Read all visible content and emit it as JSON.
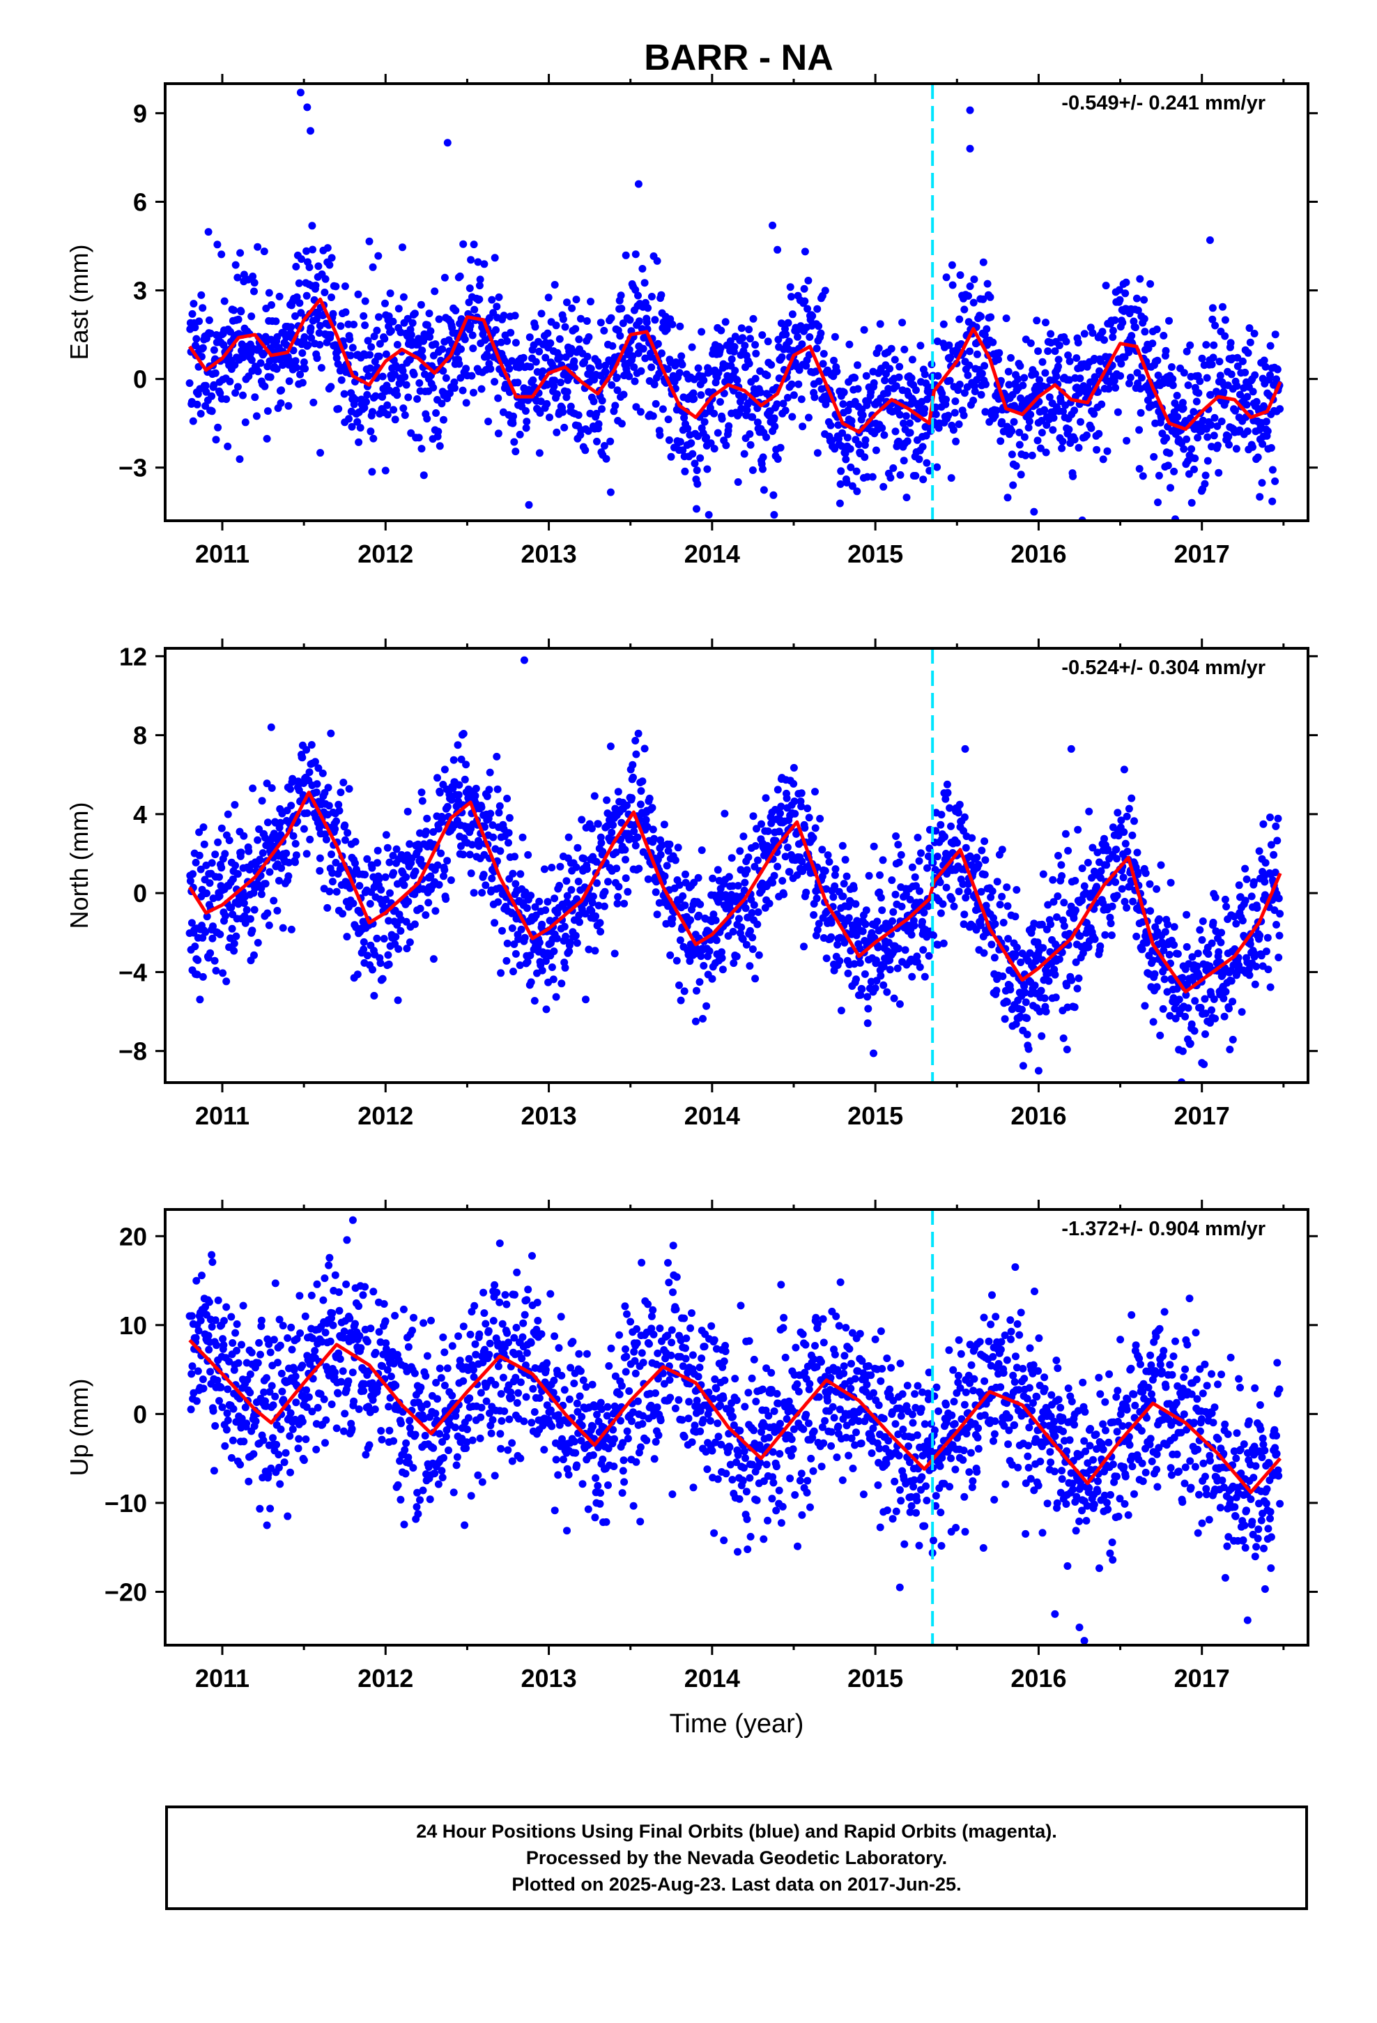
{
  "title": "BARR - NA",
  "colors": {
    "final_orbits": "#0000ff",
    "model": "#ff0000",
    "event_line": "#00e5ff",
    "frame": "#000000",
    "background": "#ffffff"
  },
  "chart_data": [
    {
      "type": "scatter",
      "component": "east",
      "ylabel": "East (mm)",
      "xlabel": "",
      "xlim": [
        2010.65,
        2017.65
      ],
      "ylim": [
        -4.8,
        10.0
      ],
      "xticks": [
        2011,
        2012,
        2013,
        2014,
        2015,
        2016,
        2017
      ],
      "xtick_labels": [
        "2011",
        "2012",
        "2013",
        "2014",
        "2015",
        "2016",
        "2017"
      ],
      "yticks": [
        -3,
        0,
        3,
        6,
        9
      ],
      "ytick_labels": [
        "−3",
        "0",
        "3",
        "6",
        "9"
      ],
      "rate_label": "-0.549+/- 0.241 mm/yr",
      "event_line_x": 2015.35,
      "model_x": [
        2010.8,
        2010.9,
        2011.0,
        2011.1,
        2011.2,
        2011.3,
        2011.4,
        2011.5,
        2011.6,
        2011.7,
        2011.8,
        2011.9,
        2012.0,
        2012.1,
        2012.2,
        2012.3,
        2012.4,
        2012.5,
        2012.6,
        2012.7,
        2012.8,
        2012.9,
        2013.0,
        2013.1,
        2013.2,
        2013.3,
        2013.4,
        2013.5,
        2013.6,
        2013.7,
        2013.8,
        2013.9,
        2014.0,
        2014.1,
        2014.2,
        2014.3,
        2014.4,
        2014.5,
        2014.6,
        2014.7,
        2014.8,
        2014.9,
        2015.0,
        2015.1,
        2015.2,
        2015.33,
        2015.36,
        2015.5,
        2015.6,
        2015.7,
        2015.8,
        2015.9,
        2016.0,
        2016.1,
        2016.2,
        2016.3,
        2016.4,
        2016.5,
        2016.6,
        2016.7,
        2016.8,
        2016.9,
        2017.0,
        2017.1,
        2017.2,
        2017.3,
        2017.4,
        2017.48
      ],
      "model_y": [
        1.1,
        0.3,
        0.7,
        1.4,
        1.5,
        0.8,
        0.9,
        2.0,
        2.7,
        1.5,
        0.1,
        -0.2,
        0.6,
        1.0,
        0.7,
        0.2,
        0.8,
        2.1,
        2.0,
        0.6,
        -0.6,
        -0.6,
        0.2,
        0.4,
        -0.1,
        -0.5,
        0.3,
        1.5,
        1.6,
        0.3,
        -0.9,
        -1.3,
        -0.6,
        -0.2,
        -0.4,
        -0.9,
        -0.5,
        0.8,
        1.1,
        -0.2,
        -1.5,
        -1.8,
        -1.2,
        -0.7,
        -1.0,
        -1.5,
        -0.4,
        0.6,
        1.7,
        0.7,
        -1.0,
        -1.2,
        -0.6,
        -0.2,
        -0.7,
        -0.8,
        0.2,
        1.2,
        1.1,
        -0.3,
        -1.5,
        -1.7,
        -1.1,
        -0.6,
        -0.7,
        -1.3,
        -1.1,
        -0.1
      ],
      "noise_amp": 1.3,
      "outliers": [
        [
          2011.48,
          9.7
        ],
        [
          2011.52,
          9.2
        ],
        [
          2011.54,
          8.4
        ],
        [
          2012.38,
          8.0
        ],
        [
          2013.55,
          6.6
        ],
        [
          2014.37,
          5.2
        ],
        [
          2015.58,
          9.1
        ],
        [
          2015.58,
          7.8
        ],
        [
          2017.05,
          4.7
        ],
        [
          2013.98,
          -4.6
        ],
        [
          2014.38,
          -4.6
        ],
        [
          2011.6,
          -2.5
        ],
        [
          2012.0,
          -3.1
        ]
      ],
      "seed": 11
    },
    {
      "type": "scatter",
      "component": "north",
      "ylabel": "North (mm)",
      "xlabel": "",
      "xlim": [
        2010.65,
        2017.65
      ],
      "ylim": [
        -9.6,
        12.4
      ],
      "xticks": [
        2011,
        2012,
        2013,
        2014,
        2015,
        2016,
        2017
      ],
      "xtick_labels": [
        "2011",
        "2012",
        "2013",
        "2014",
        "2015",
        "2016",
        "2017"
      ],
      "yticks": [
        -8,
        -4,
        0,
        4,
        8,
        12
      ],
      "ytick_labels": [
        "−8",
        "−4",
        "0",
        "4",
        "8",
        "12"
      ],
      "rate_label": "-0.524+/- 0.304 mm/yr",
      "event_line_x": 2015.35,
      "model_x": [
        2010.8,
        2010.9,
        2011.0,
        2011.2,
        2011.4,
        2011.53,
        2011.7,
        2011.9,
        2012.0,
        2012.2,
        2012.4,
        2012.52,
        2012.7,
        2012.9,
        2013.0,
        2013.2,
        2013.4,
        2013.52,
        2013.7,
        2013.9,
        2014.0,
        2014.2,
        2014.4,
        2014.52,
        2014.7,
        2014.9,
        2015.0,
        2015.2,
        2015.33,
        2015.36,
        2015.52,
        2015.7,
        2015.9,
        2016.0,
        2016.2,
        2016.4,
        2016.55,
        2016.7,
        2016.9,
        2017.0,
        2017.2,
        2017.35,
        2017.48
      ],
      "model_y": [
        0.3,
        -1.0,
        -0.6,
        0.8,
        3.0,
        5.1,
        2.4,
        -1.5,
        -1.0,
        0.5,
        3.8,
        4.6,
        0.8,
        -2.3,
        -1.8,
        -0.4,
        2.6,
        4.1,
        0.3,
        -2.6,
        -2.1,
        -0.3,
        2.4,
        3.6,
        -0.5,
        -3.2,
        -2.5,
        -1.3,
        -0.3,
        0.6,
        2.2,
        -1.8,
        -4.4,
        -3.8,
        -2.3,
        0.4,
        1.8,
        -2.6,
        -5.0,
        -4.4,
        -3.2,
        -1.5,
        1.0
      ],
      "noise_amp": 1.8,
      "outliers": [
        [
          2012.85,
          11.8
        ],
        [
          2011.3,
          8.4
        ],
        [
          2016.2,
          7.3
        ],
        [
          2015.55,
          7.3
        ],
        [
          2016.0,
          -9.0
        ],
        [
          2011.93,
          -5.2
        ],
        [
          2017.0,
          -8.6
        ],
        [
          2013.9,
          -6.5
        ]
      ],
      "seed": 23
    },
    {
      "type": "scatter",
      "component": "up",
      "ylabel": "Up (mm)",
      "xlabel": "Time (year)",
      "xlim": [
        2010.65,
        2017.65
      ],
      "ylim": [
        -26,
        23
      ],
      "xticks": [
        2011,
        2012,
        2013,
        2014,
        2015,
        2016,
        2017
      ],
      "xtick_labels": [
        "2011",
        "2012",
        "2013",
        "2014",
        "2015",
        "2016",
        "2017"
      ],
      "yticks": [
        -20,
        -10,
        0,
        10,
        20
      ],
      "ytick_labels": [
        "−20",
        "−10",
        "0",
        "10",
        "20"
      ],
      "rate_label": "-1.372+/- 0.904 mm/yr",
      "event_line_x": 2015.35,
      "model_x": [
        2010.8,
        2011.0,
        2011.2,
        2011.3,
        2011.5,
        2011.7,
        2011.9,
        2012.1,
        2012.28,
        2012.5,
        2012.7,
        2012.9,
        2013.1,
        2013.28,
        2013.5,
        2013.7,
        2013.9,
        2014.1,
        2014.3,
        2014.5,
        2014.7,
        2014.9,
        2015.1,
        2015.3,
        2015.5,
        2015.7,
        2015.9,
        2016.1,
        2016.3,
        2016.5,
        2016.7,
        2016.9,
        2017.1,
        2017.3,
        2017.48
      ],
      "model_y": [
        8.3,
        4.5,
        0.5,
        -1.0,
        3.5,
        7.8,
        5.5,
        1.0,
        -2.2,
        2.5,
        6.5,
        4.5,
        0.0,
        -3.5,
        1.5,
        5.3,
        3.5,
        -1.5,
        -5.0,
        -0.5,
        3.8,
        1.5,
        -2.5,
        -6.2,
        -2.0,
        2.5,
        1.0,
        -3.5,
        -7.8,
        -3.0,
        1.2,
        -1.0,
        -4.5,
        -8.8,
        -5.0
      ],
      "noise_amp": 5.0,
      "outliers": [
        [
          2011.8,
          21.8
        ],
        [
          2012.7,
          19.2
        ],
        [
          2016.1,
          -22.5
        ],
        [
          2016.28,
          -25.5
        ],
        [
          2016.25,
          -24.0
        ],
        [
          2017.28,
          -23.2
        ],
        [
          2015.15,
          -19.5
        ],
        [
          2011.4,
          -11.5
        ]
      ],
      "seed": 37
    }
  ],
  "footer": {
    "line1": "24 Hour Positions Using Final Orbits (blue) and Rapid Orbits (magenta).",
    "line2": "Processed by the Nevada Geodetic Laboratory.",
    "line3": "Plotted on 2025-Aug-23. Last data on 2017-Jun-25."
  }
}
